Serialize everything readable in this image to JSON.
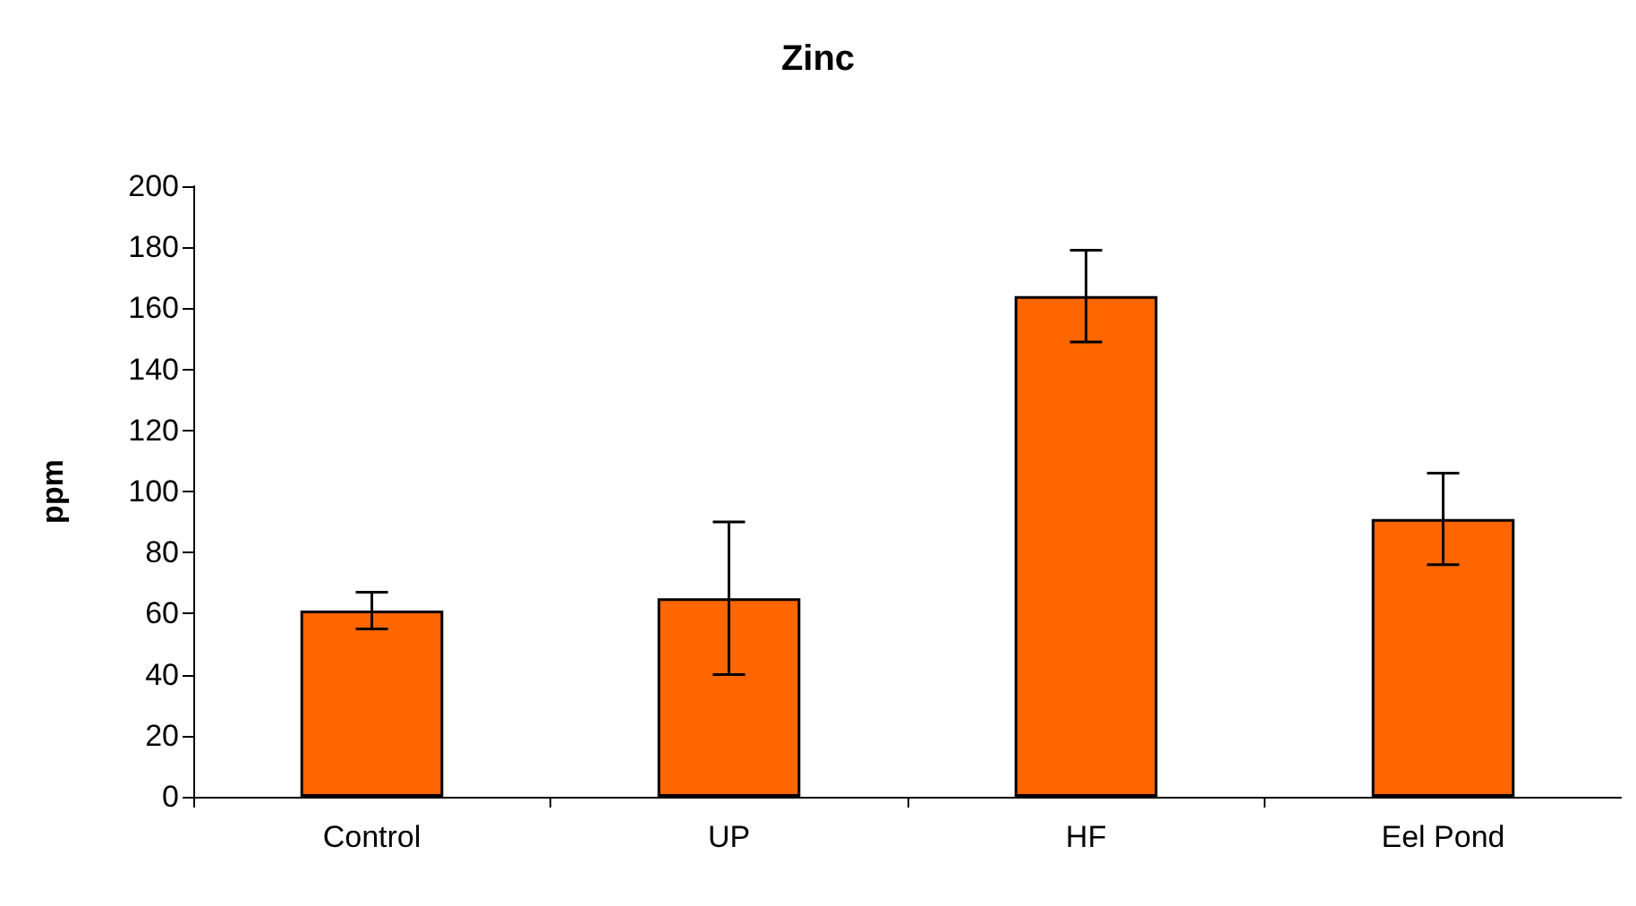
{
  "chart_data": {
    "type": "bar",
    "title": "Zinc",
    "ylabel": "ppm",
    "categories": [
      "Control",
      "UP",
      "HF",
      "Eel Pond"
    ],
    "values": [
      61,
      65,
      164,
      91
    ],
    "errors": [
      6,
      25,
      15,
      15
    ],
    "color": "#ff6600",
    "ylim": [
      0,
      200
    ],
    "yticks": [
      0,
      20,
      40,
      60,
      80,
      100,
      120,
      140,
      160,
      180,
      200
    ],
    "grid": false
  }
}
